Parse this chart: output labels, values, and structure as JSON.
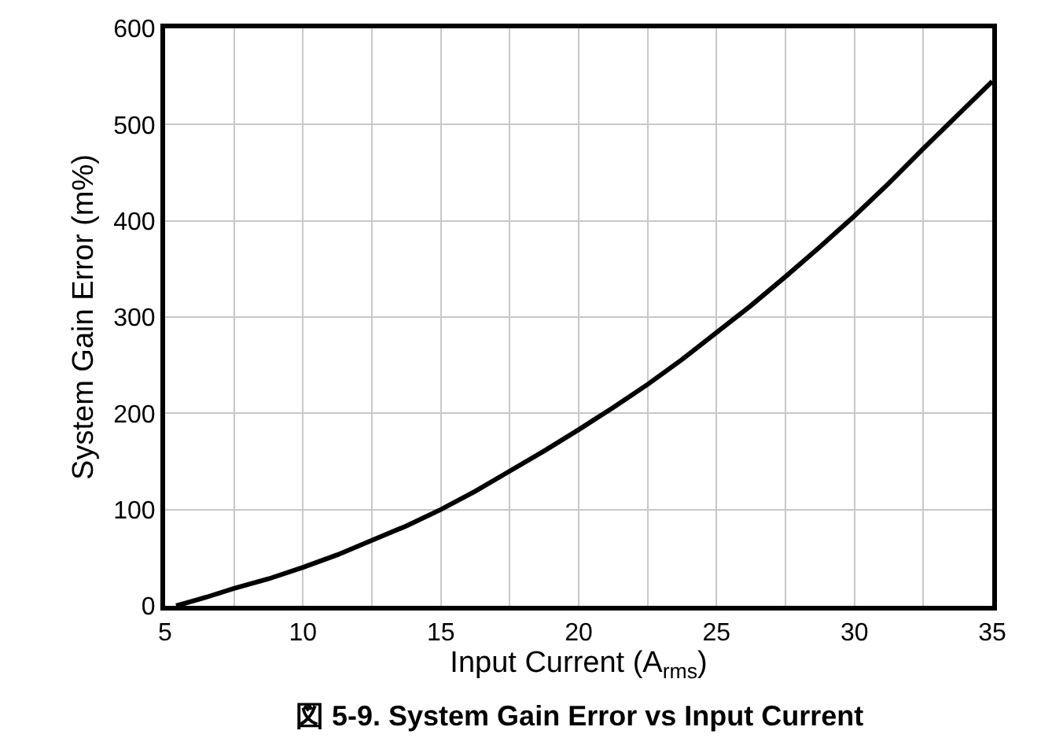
{
  "chart_data": {
    "type": "line",
    "xlabel": "Input Current (A$_{rms}$)",
    "ylabel": "System Gain Error (m%)",
    "annotations": [
      "図 5-9. System Gain Error vs Input Current"
    ],
    "x": [
      5.4,
      6.5,
      7.5,
      8.75,
      10,
      11.25,
      12.5,
      13.75,
      15,
      16.25,
      17.5,
      18.75,
      20,
      21.25,
      22.5,
      23.75,
      25,
      26.25,
      27.5,
      28.75,
      30,
      31.25,
      32.5,
      33.75,
      35
    ],
    "series": [
      {
        "color": "#000000",
        "values": [
          0,
          9,
          18,
          28,
          40,
          53,
          68,
          83,
          100,
          119,
          140,
          161,
          183,
          206,
          230,
          256,
          284,
          312,
          342,
          373,
          405,
          439,
          475,
          510,
          545
        ]
      }
    ],
    "xlim": [
      5,
      35
    ],
    "xticks": [
      5,
      {
        "value": 7.5,
        "label": null
      },
      10,
      {
        "value": 12.5,
        "label": null
      },
      15,
      {
        "value": 17.5,
        "label": null
      },
      20,
      {
        "value": 22.5,
        "label": null
      },
      25,
      {
        "value": 27.5,
        "label": null
      },
      30,
      {
        "value": 32.5,
        "label": null
      },
      35
    ],
    "ylim": [
      0,
      600
    ],
    "yticks": [
      0,
      100,
      200,
      300,
      400,
      500,
      600
    ],
    "grid": true,
    "marker": "none",
    "line_style": "solid"
  }
}
